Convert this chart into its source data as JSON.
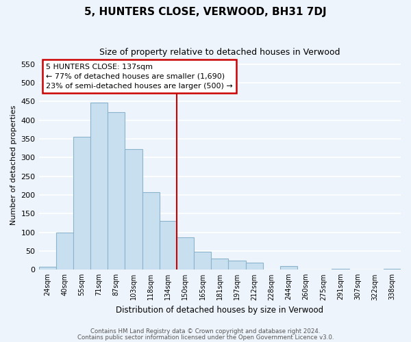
{
  "title": "5, HUNTERS CLOSE, VERWOOD, BH31 7DJ",
  "subtitle": "Size of property relative to detached houses in Verwood",
  "xlabel": "Distribution of detached houses by size in Verwood",
  "ylabel": "Number of detached properties",
  "bar_labels": [
    "24sqm",
    "40sqm",
    "55sqm",
    "71sqm",
    "87sqm",
    "103sqm",
    "118sqm",
    "134sqm",
    "150sqm",
    "165sqm",
    "181sqm",
    "197sqm",
    "212sqm",
    "228sqm",
    "244sqm",
    "260sqm",
    "275sqm",
    "291sqm",
    "307sqm",
    "322sqm",
    "338sqm"
  ],
  "bar_heights": [
    7,
    100,
    355,
    447,
    422,
    323,
    207,
    130,
    86,
    48,
    29,
    25,
    19,
    0,
    9,
    0,
    0,
    2,
    0,
    0,
    2
  ],
  "bar_color": "#c8dff0",
  "bar_edge_color": "#8ab4cc",
  "vline_index": 7,
  "vline_color": "#cc0000",
  "annotation_title": "5 HUNTERS CLOSE: 137sqm",
  "annotation_line1": "← 77% of detached houses are smaller (1,690)",
  "annotation_line2": "23% of semi-detached houses are larger (500) →",
  "ylim": [
    0,
    560
  ],
  "yticks": [
    0,
    50,
    100,
    150,
    200,
    250,
    300,
    350,
    400,
    450,
    500,
    550
  ],
  "footer1": "Contains HM Land Registry data © Crown copyright and database right 2024.",
  "footer2": "Contains public sector information licensed under the Open Government Licence v3.0.",
  "bg_color": "#eef4fc",
  "grid_color": "#ffffff",
  "annotation_box_color": "#ffffff",
  "annotation_box_edge": "#cc0000"
}
